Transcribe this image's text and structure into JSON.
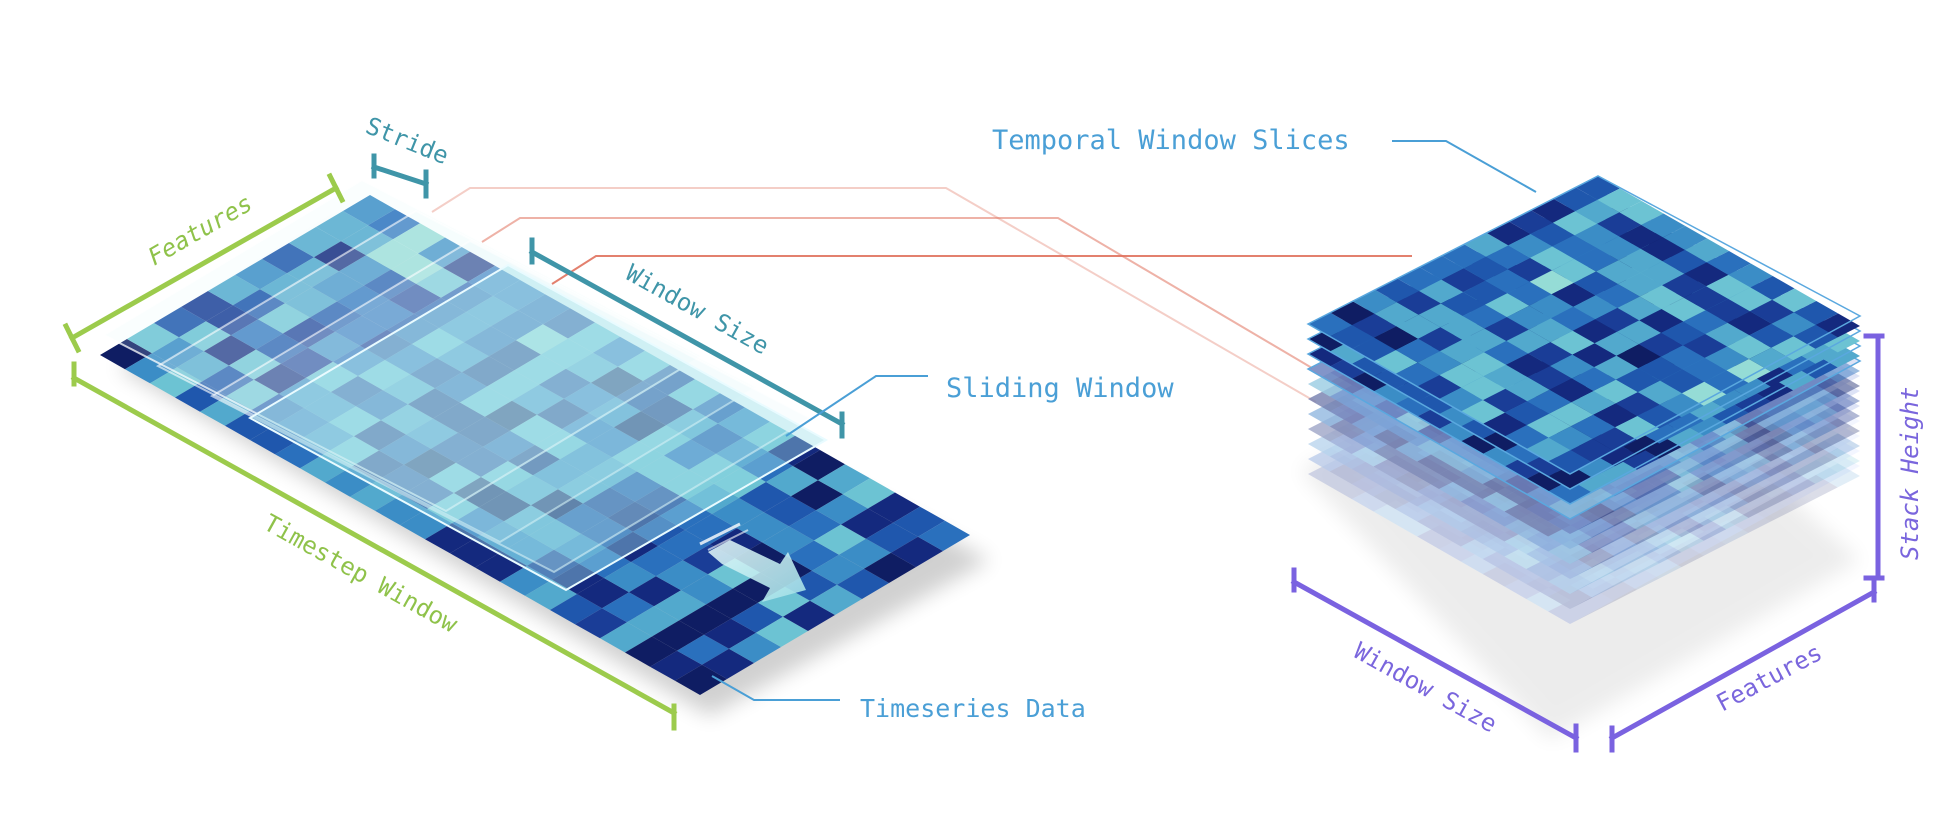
{
  "labels": {
    "features_left": "Features",
    "stride": "Stride",
    "window_size_left": "Window Size",
    "timestep_window": "Timestep Window",
    "sliding_window": "Sliding Window",
    "timeseries_data": "Timeseries Data",
    "temporal_window_slices": "Temporal Window Slices",
    "stack_height": "Stack Height",
    "window_size_right": "Window Size",
    "features_right": "Features"
  },
  "colors": {
    "green_dimension": "#9ccb4c",
    "teal_dimension": "#3f95a8",
    "purple_dimension": "#7a62e0",
    "callout_blue": "#4a9fd6",
    "connector_red": "#e0725e",
    "heat_low": "#13236e",
    "heat_high": "#bfeed8"
  }
}
